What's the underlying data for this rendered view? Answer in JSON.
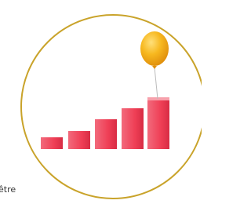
{
  "caption": "être"
}
